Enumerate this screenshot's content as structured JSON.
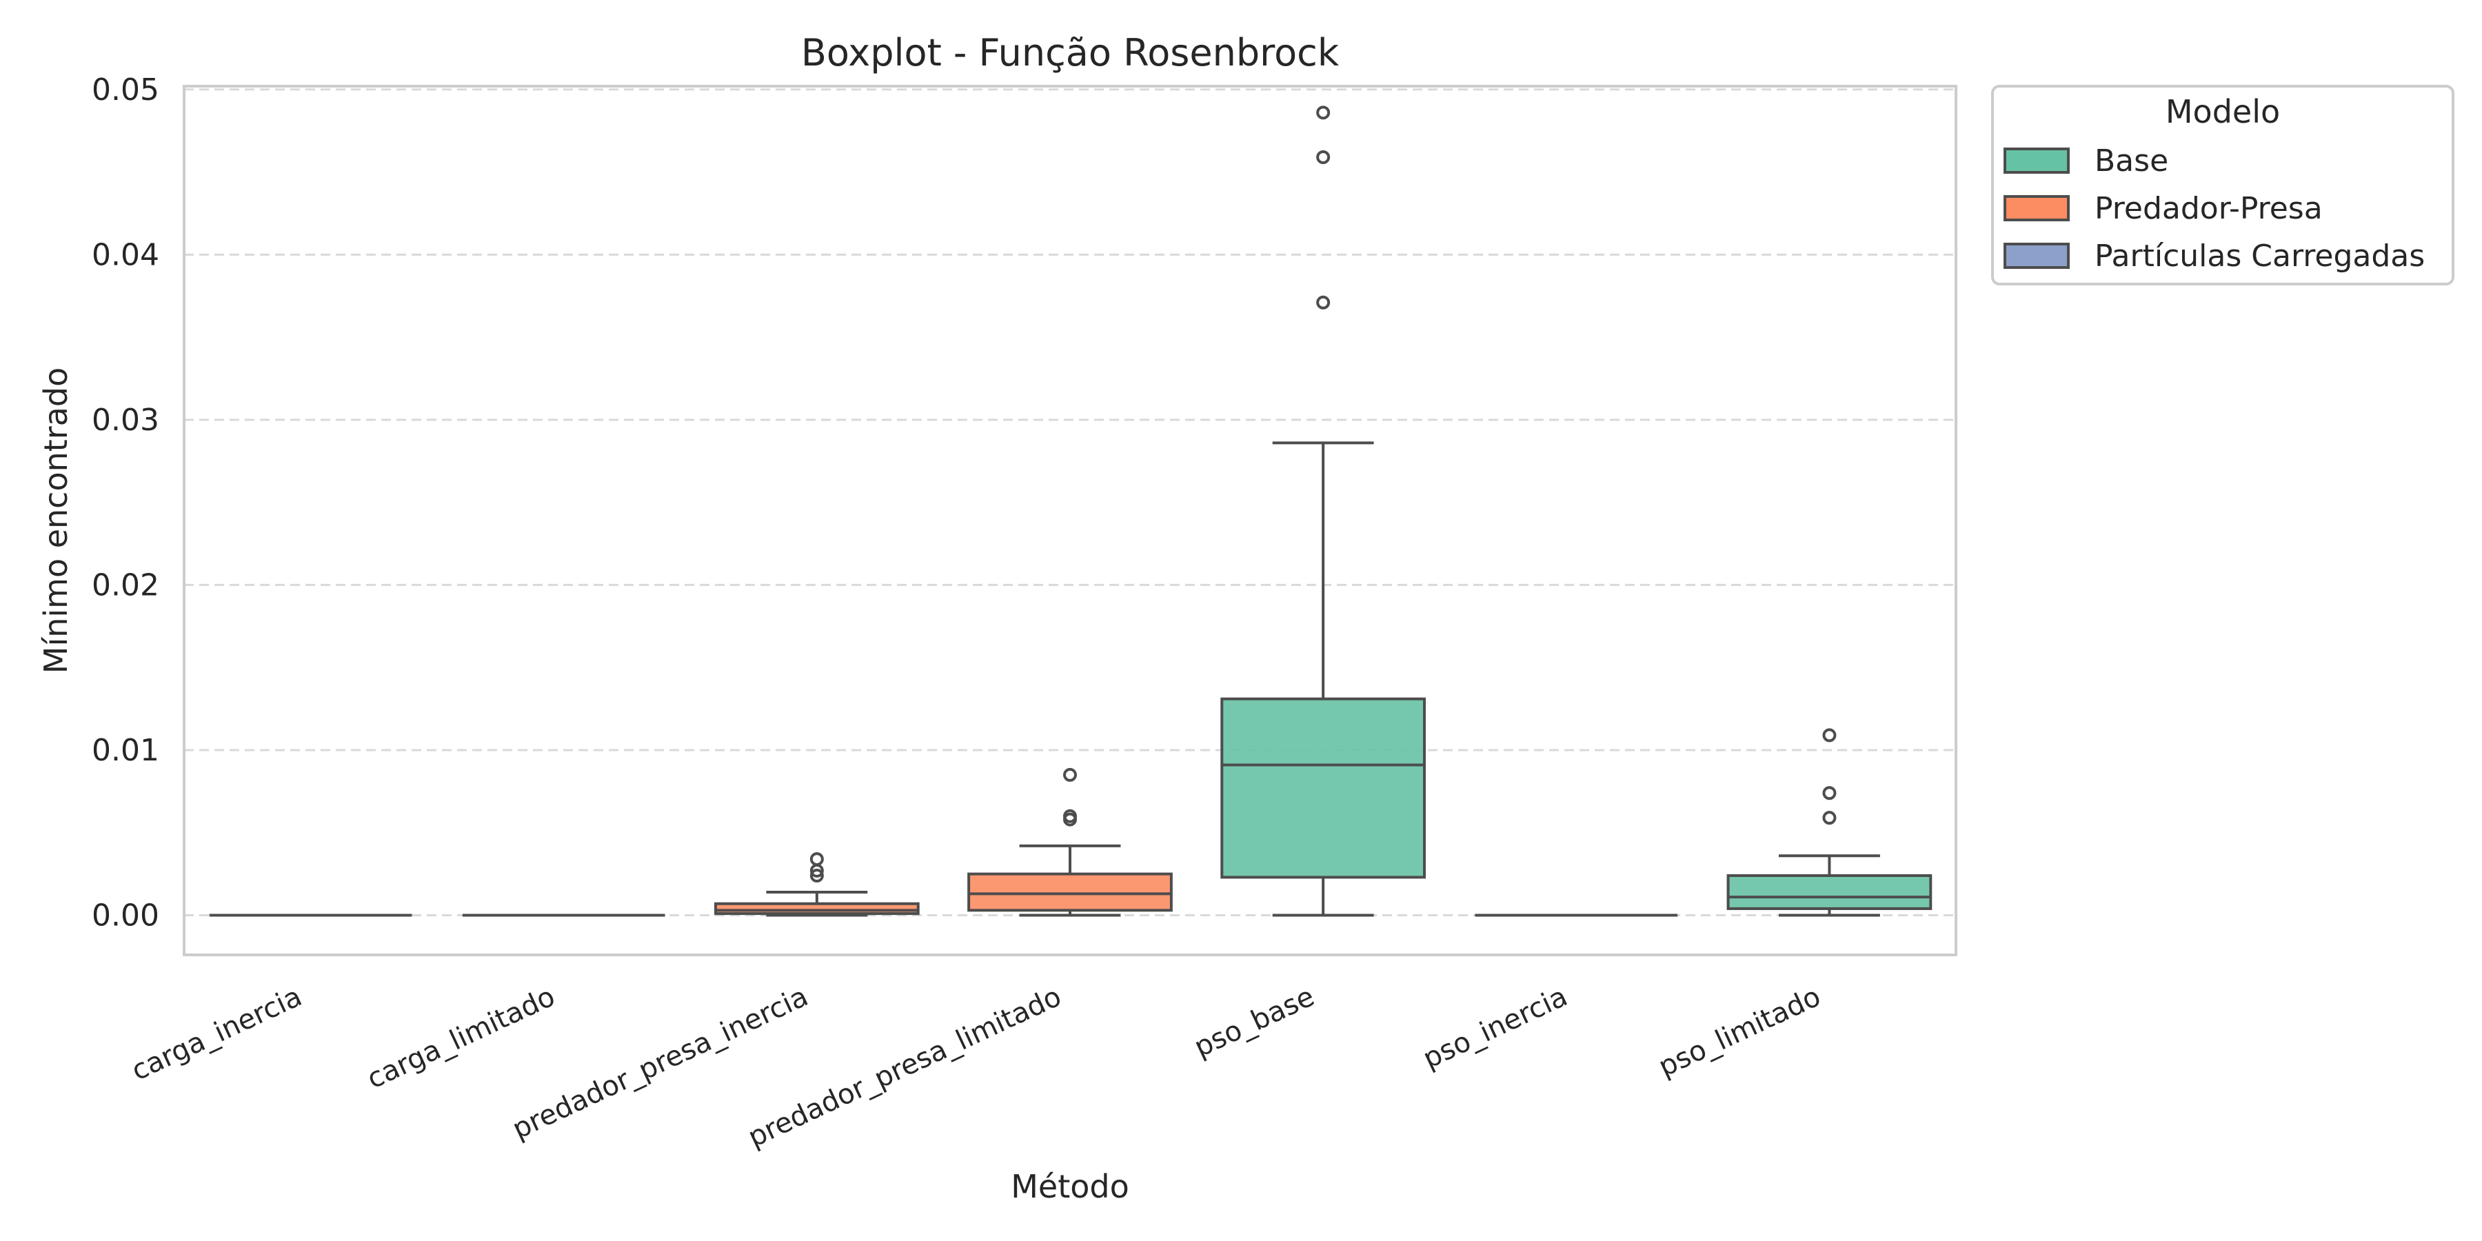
{
  "chart_data": {
    "type": "boxplot",
    "title": "Boxplot - Função Rosenbrock",
    "xlabel": "Método",
    "ylabel": "Mínimo encontrado",
    "ylim": [
      -0.0024,
      0.0502
    ],
    "yticks": [
      "0.00",
      "0.01",
      "0.02",
      "0.03",
      "0.04",
      "0.05"
    ],
    "ytick_values": [
      0,
      0.01,
      0.02,
      0.03,
      0.04,
      0.05
    ],
    "grid": "horizontal-dashed",
    "legend": {
      "title": "Modelo",
      "placement": "outside-top-right",
      "entries": [
        {
          "name": "Base",
          "color": "#66c2a5"
        },
        {
          "name": "Predador-Presa",
          "color": "#fc8d62"
        },
        {
          "name": "Partículas Carregadas",
          "color": "#8da0cb"
        }
      ]
    },
    "categories": [
      "carga_inercia",
      "carga_limitado",
      "predador_presa_inercia",
      "predador_presa_limitado",
      "pso_base",
      "pso_inercia",
      "pso_limitado"
    ],
    "boxes": [
      {
        "category": "carga_inercia",
        "model": "Partículas Carregadas",
        "whislo": 0,
        "q1": 0,
        "med": 0,
        "q3": 0,
        "whishi": 0,
        "fliers": []
      },
      {
        "category": "carga_limitado",
        "model": "Partículas Carregadas",
        "whislo": 0,
        "q1": 0,
        "med": 0,
        "q3": 0,
        "whishi": 0,
        "fliers": []
      },
      {
        "category": "predador_presa_inercia",
        "model": "Predador-Presa",
        "whislo": 0,
        "q1": 0.0001,
        "med": 0.0003,
        "q3": 0.0007,
        "whishi": 0.0014,
        "fliers": [
          0.0024,
          0.0027,
          0.0034
        ]
      },
      {
        "category": "predador_presa_limitado",
        "model": "Predador-Presa",
        "whislo": 0,
        "q1": 0.0003,
        "med": 0.0013,
        "q3": 0.0025,
        "whishi": 0.0042,
        "fliers": [
          0.0058,
          0.006,
          0.0085
        ]
      },
      {
        "category": "pso_base",
        "model": "Base",
        "whislo": 0,
        "q1": 0.0023,
        "med": 0.0091,
        "q3": 0.0131,
        "whishi": 0.0286,
        "fliers": [
          0.0371,
          0.0459,
          0.0486
        ]
      },
      {
        "category": "pso_inercia",
        "model": "Base",
        "whislo": 0,
        "q1": 0,
        "med": 0,
        "q3": 0,
        "whishi": 0,
        "fliers": []
      },
      {
        "category": "pso_limitado",
        "model": "Base",
        "whislo": 0,
        "q1": 0.0004,
        "med": 0.0011,
        "q3": 0.0024,
        "whishi": 0.0036,
        "fliers": [
          0.0059,
          0.0074,
          0.0109
        ]
      }
    ]
  }
}
